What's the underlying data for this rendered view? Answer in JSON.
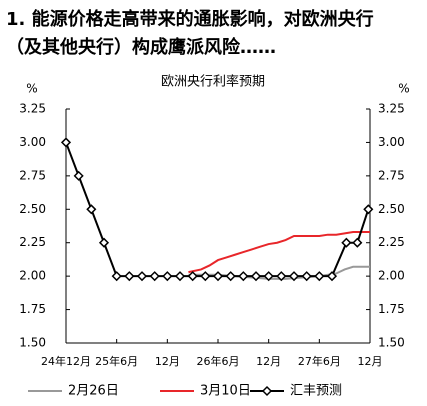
{
  "heading": [
    "1. 能源价格走高带来的通胀影响，对欧洲央行",
    "（及其他央行）构成鹰派风险……"
  ],
  "chart_data": {
    "type": "line",
    "title": "欧洲央行利率预期",
    "y_unit": "%",
    "y2_unit": "%",
    "xlim": [
      0,
      36
    ],
    "xticks": [
      {
        "value": 0,
        "label": "24年12月"
      },
      {
        "value": 6,
        "label": "25年6月"
      },
      {
        "value": 12,
        "label": "12月"
      },
      {
        "value": 18,
        "label": "26年6月"
      },
      {
        "value": 24,
        "label": "12月"
      },
      {
        "value": 30,
        "label": "27年6月"
      },
      {
        "value": 36,
        "label": "12月"
      }
    ],
    "ylim": [
      1.5,
      3.25
    ],
    "yticks": [
      {
        "value": 1.5,
        "label": "1.50"
      },
      {
        "value": 1.75,
        "label": "1.75"
      },
      {
        "value": 2,
        "label": "2.00"
      },
      {
        "value": 2.25,
        "label": "2.25"
      },
      {
        "value": 2.5,
        "label": "2.50"
      },
      {
        "value": 2.75,
        "label": "2.75"
      },
      {
        "value": 3,
        "label": "3.00"
      },
      {
        "value": 3.25,
        "label": "3.25"
      }
    ],
    "y2lim": [
      1.5,
      3.25
    ],
    "y2ticks": [
      {
        "value": 1.5,
        "label": "1.50"
      },
      {
        "value": 1.75,
        "label": "1.75"
      },
      {
        "value": 2,
        "label": "2.00"
      },
      {
        "value": 2.25,
        "label": "2.25"
      },
      {
        "value": 2.5,
        "label": "2.50"
      },
      {
        "value": 2.75,
        "label": "2.75"
      },
      {
        "value": 3,
        "label": "3.00"
      },
      {
        "value": 3.25,
        "label": "3.25"
      }
    ],
    "series": [
      {
        "name": "2月26日",
        "color": "#999999",
        "x": [
          14.5,
          16,
          18,
          20,
          22,
          24,
          26,
          28,
          30,
          32,
          33,
          34,
          35,
          36
        ],
        "values": [
          2.01,
          2.01,
          2.01,
          2.0,
          1.99,
          1.98,
          1.98,
          1.99,
          2.0,
          2.02,
          2.05,
          2.07,
          2.07,
          2.07
        ]
      },
      {
        "name": "3月10日",
        "color": "#e8262a",
        "x": [
          14.5,
          16,
          17,
          18,
          19,
          20,
          21,
          22,
          23,
          24,
          25,
          26,
          27,
          28,
          29,
          30,
          31,
          32,
          33,
          34,
          35,
          36
        ],
        "values": [
          2.03,
          2.05,
          2.08,
          2.12,
          2.14,
          2.16,
          2.18,
          2.2,
          2.22,
          2.24,
          2.25,
          2.27,
          2.3,
          2.3,
          2.3,
          2.3,
          2.31,
          2.31,
          2.32,
          2.33,
          2.33,
          2.33
        ]
      },
      {
        "name": "汇丰预测",
        "color": "#000000",
        "marker": "diamond",
        "x": [
          0,
          1.5,
          3,
          4.5,
          6,
          7.5,
          9,
          10.5,
          12,
          13.5,
          15,
          16.5,
          18,
          19.5,
          21,
          22.5,
          24,
          25.5,
          27,
          28.5,
          30,
          31.5,
          33.2,
          34.5,
          35.8
        ],
        "values": [
          3.0,
          2.75,
          2.5,
          2.25,
          2.0,
          2.0,
          2.0,
          2.0,
          2.0,
          2.0,
          2.0,
          2.0,
          2.0,
          2.0,
          2.0,
          2.0,
          2.0,
          2.0,
          2.0,
          2.0,
          2.0,
          2.0,
          2.25,
          2.25,
          2.5
        ]
      }
    ]
  }
}
